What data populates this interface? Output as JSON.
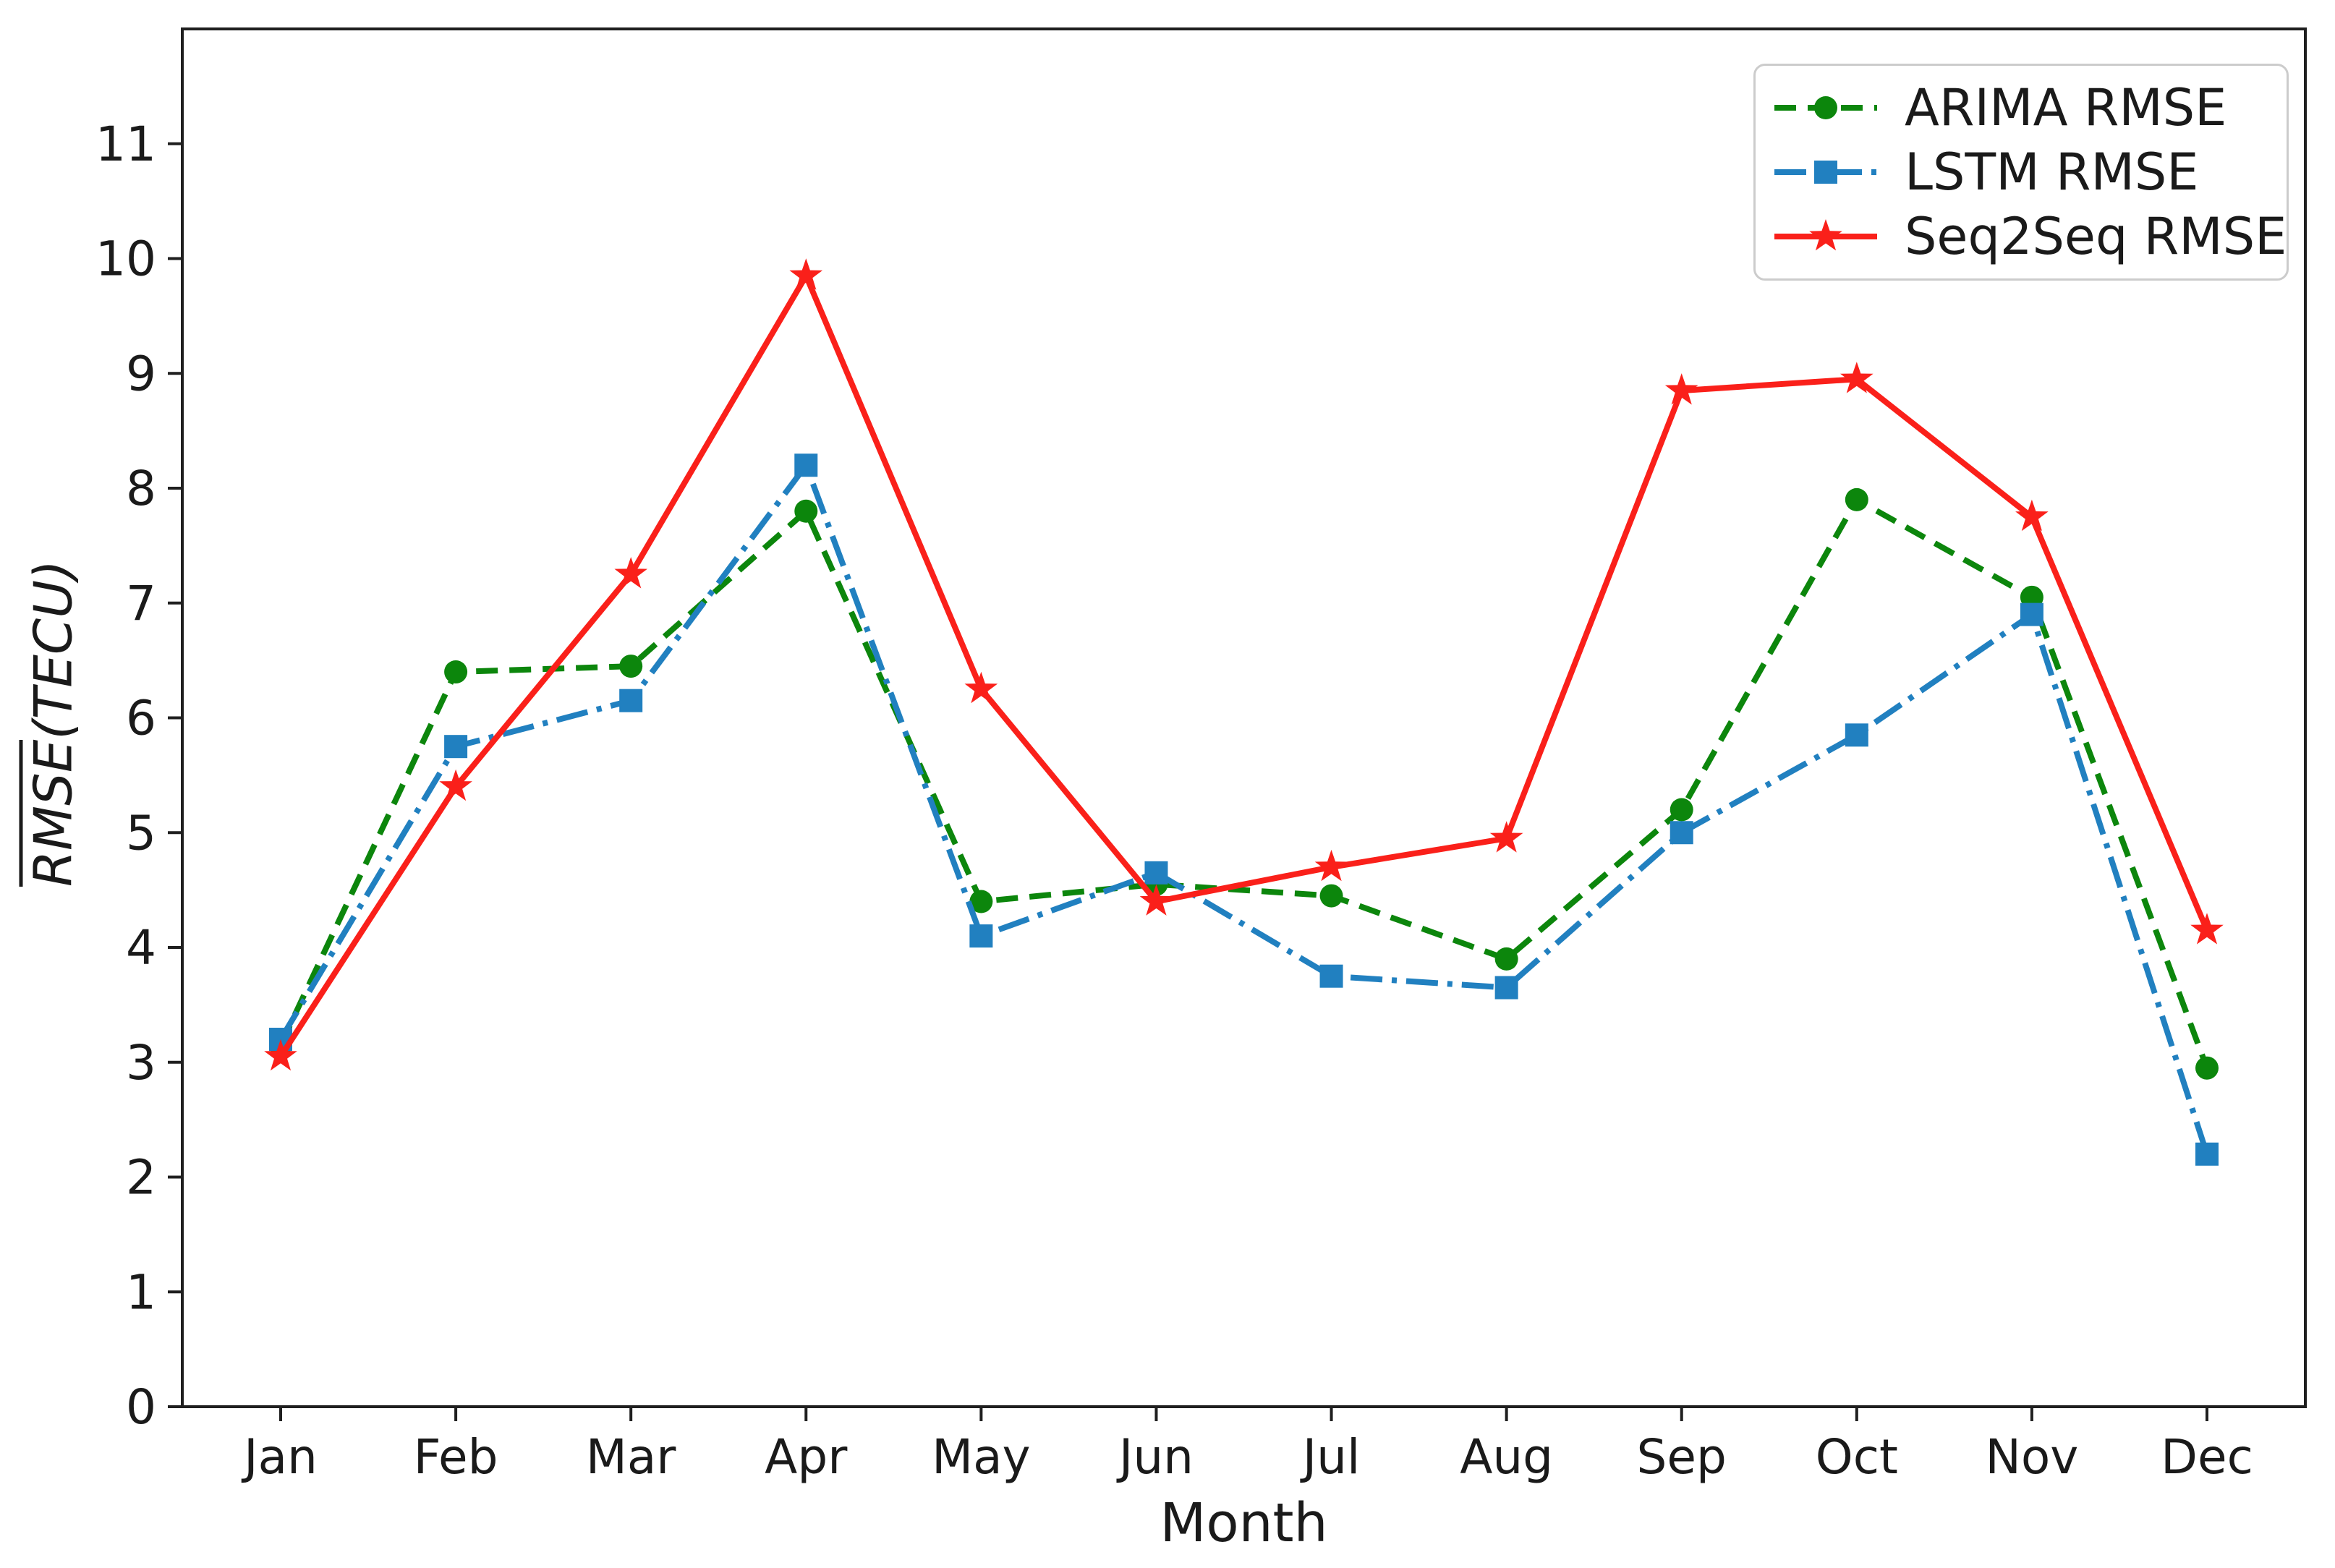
{
  "chart_data": {
    "type": "line",
    "title": "",
    "xlabel": "Month",
    "ylabel": "RMSE(TECU)",
    "ylabel_overline_part": "RMSE",
    "ylabel_rest": "(TECU)",
    "categories": [
      "Jan",
      "Feb",
      "Mar",
      "Apr",
      "May",
      "Jun",
      "Jul",
      "Aug",
      "Sep",
      "Oct",
      "Nov",
      "Dec"
    ],
    "y_ticks": [
      0,
      1,
      2,
      3,
      4,
      5,
      6,
      7,
      8,
      9,
      10,
      11
    ],
    "ylim": [
      0,
      12.0
    ],
    "grid": false,
    "legend_position": "upper right",
    "series": [
      {
        "name": "ARIMA RMSE",
        "color": "#0c860c",
        "line_style": "dashed",
        "marker": "circle",
        "values": [
          3.15,
          6.4,
          6.45,
          7.8,
          4.4,
          4.55,
          4.45,
          3.9,
          5.2,
          7.9,
          7.05,
          2.95
        ]
      },
      {
        "name": "LSTM RMSE",
        "color": "#2180c0",
        "line_style": "dashdot",
        "marker": "square",
        "values": [
          3.2,
          5.75,
          6.15,
          8.2,
          4.1,
          4.65,
          3.75,
          3.65,
          5.0,
          5.85,
          6.9,
          2.2
        ]
      },
      {
        "name": "Seq2Seq RMSE",
        "color": "#fa201a",
        "line_style": "solid",
        "marker": "star",
        "values": [
          3.05,
          5.4,
          7.25,
          9.85,
          6.25,
          4.4,
          4.7,
          4.95,
          8.85,
          8.95,
          7.75,
          4.15
        ]
      }
    ],
    "axis_color": "#1f1f1f"
  }
}
